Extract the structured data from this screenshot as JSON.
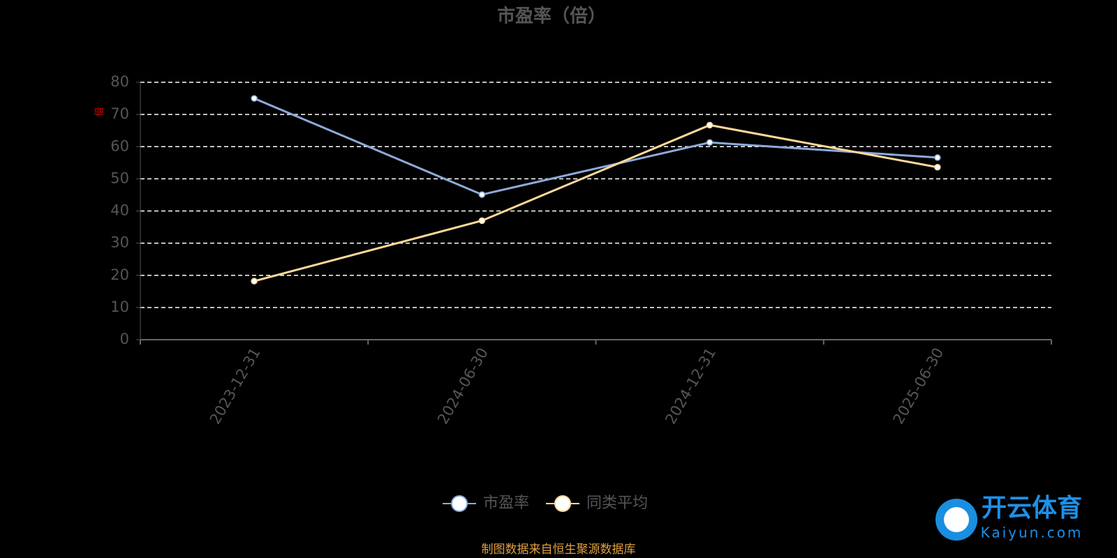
{
  "chart_data": {
    "type": "line",
    "title": "市盈率（倍）",
    "y_label": "倍",
    "categories": [
      "2023-12-31",
      "2024-06-30",
      "2024-12-31",
      "2025-06-30"
    ],
    "series": [
      {
        "name": "市盈率",
        "color": "#8eaadb",
        "values": [
          75.0,
          45.1,
          61.3,
          56.6
        ]
      },
      {
        "name": "同类平均",
        "color": "#ffd898",
        "values": [
          18.2,
          37.0,
          66.7,
          53.6
        ]
      }
    ],
    "ylim": [
      0,
      80
    ],
    "yticks": [
      0,
      10,
      20,
      30,
      40,
      50,
      60,
      70,
      80
    ],
    "grid": true,
    "legend": "bottom"
  },
  "footer": "制图数据来自恒生聚源数据库",
  "watermark": {
    "title": "开云体育",
    "subtitle": "Kaiyun.com"
  }
}
